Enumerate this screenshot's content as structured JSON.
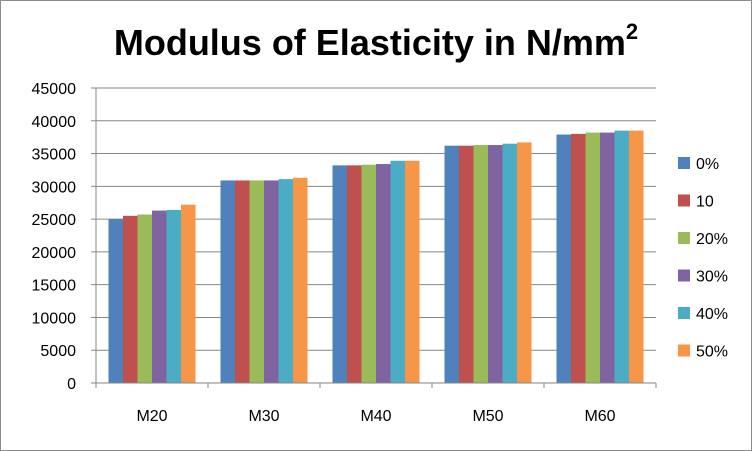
{
  "chart_data": {
    "type": "bar",
    "title": "Modulus of Elasticity in N/mm",
    "title_superscript": "2",
    "categories": [
      "M20",
      "M30",
      "M40",
      "M50",
      "M60"
    ],
    "series": [
      {
        "name": "0%",
        "color": "#4F81BD",
        "values": [
          25000,
          30900,
          33200,
          36200,
          37900
        ]
      },
      {
        "name": "10",
        "color": "#C0504D",
        "values": [
          25500,
          30900,
          33200,
          36200,
          38000
        ]
      },
      {
        "name": "20%",
        "color": "#9BBB59",
        "values": [
          25700,
          30900,
          33300,
          36300,
          38200
        ]
      },
      {
        "name": "30%",
        "color": "#8064A2",
        "values": [
          26300,
          30900,
          33400,
          36300,
          38200
        ]
      },
      {
        "name": "40%",
        "color": "#4BACC6",
        "values": [
          26400,
          31100,
          33900,
          36500,
          38500
        ]
      },
      {
        "name": "50%",
        "color": "#F79646",
        "values": [
          27200,
          31300,
          33900,
          36700,
          38500
        ]
      }
    ],
    "yticks": [
      "0",
      "5000",
      "10000",
      "15000",
      "20000",
      "25000",
      "30000",
      "35000",
      "40000",
      "45000"
    ],
    "ylim": [
      0,
      45000
    ],
    "grid": true,
    "legend": "right"
  }
}
